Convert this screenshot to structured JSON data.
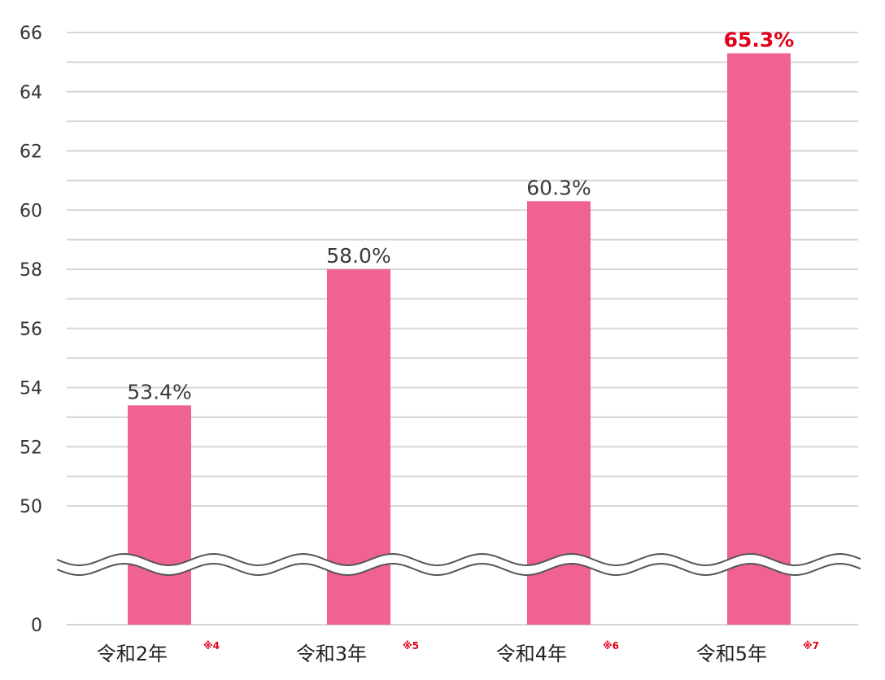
{
  "chart_data": {
    "type": "bar",
    "categories": [
      "令和2年",
      "令和3年",
      "令和4年",
      "令和5年"
    ],
    "notes": [
      "※4",
      "※5",
      "※6",
      "※7"
    ],
    "values": [
      53.4,
      58.0,
      60.3,
      65.3
    ],
    "value_labels": [
      "53.4%",
      "58.0%",
      "60.3%",
      "65.3%"
    ],
    "highlight_index": 3,
    "y_ticks": [
      "66",
      "64",
      "62",
      "60",
      "58",
      "56",
      "54",
      "52",
      "50",
      "0"
    ],
    "ylim": [
      50,
      66
    ],
    "y_break": true,
    "grid": true,
    "colors": {
      "bar": "#f06292",
      "highlight_label": "#e0001b",
      "grid": "#d6d6d6"
    },
    "title": "",
    "xlabel": "",
    "ylabel": ""
  }
}
